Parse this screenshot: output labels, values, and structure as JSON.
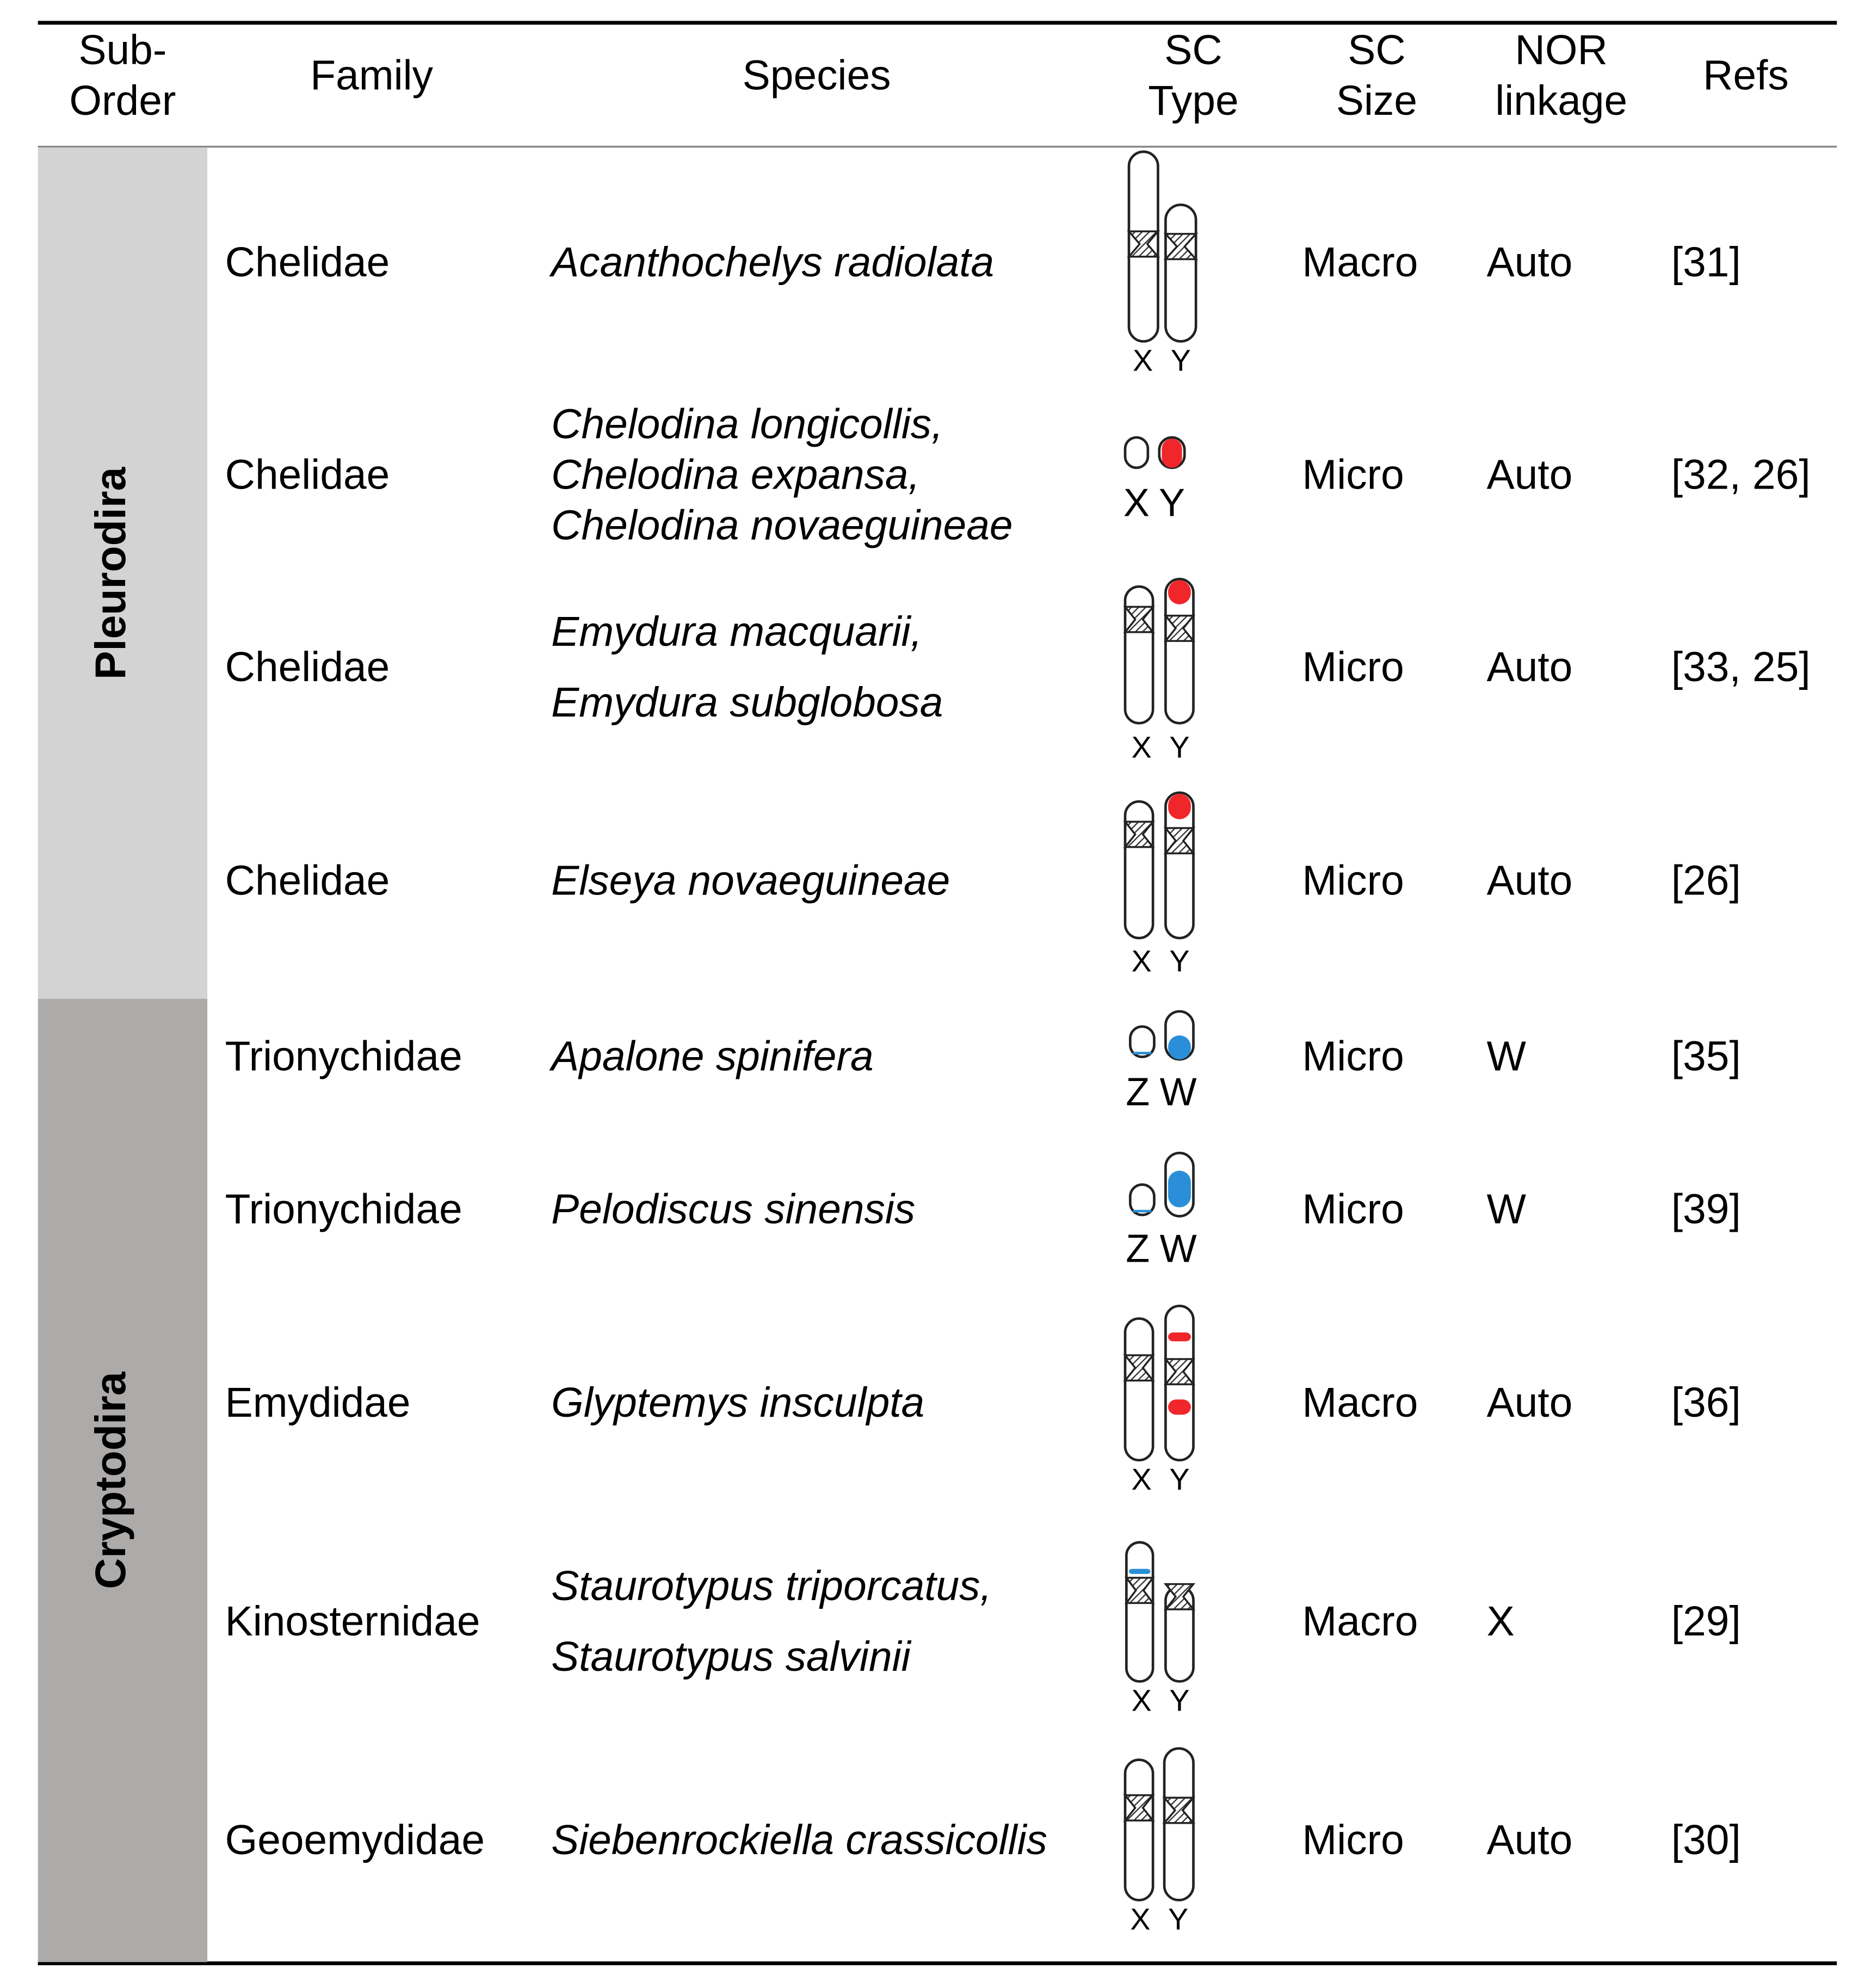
{
  "header": {
    "columns": [
      [
        "Sub-",
        "Order"
      ],
      [
        "Family"
      ],
      [
        "Species"
      ],
      [
        "SC",
        "Type"
      ],
      [
        "SC",
        "Size"
      ],
      [
        "NOR",
        "linkage"
      ],
      [
        "Refs"
      ]
    ]
  },
  "suborders": [
    {
      "label": "Pleurodira",
      "rows": [
        {
          "family": "Chelidae",
          "species": [
            "Acanthochelys radiolata"
          ],
          "sc_type": [
            "X",
            "Y"
          ],
          "size": "Macro",
          "nor": "Auto",
          "refs": "[31]"
        },
        {
          "family": "Chelidae",
          "species": [
            "Chelodina longicollis,",
            "Chelodina expansa,",
            "Chelodina novaeguineae"
          ],
          "sc_type": [
            "X",
            "Y"
          ],
          "size": "Micro",
          "nor": "Auto",
          "refs": "[32, 26]"
        },
        {
          "family": "Chelidae",
          "species": [
            "Emydura macquarii,",
            "Emydura subglobosa"
          ],
          "sc_type": [
            "X",
            "Y"
          ],
          "size": "Micro",
          "nor": "Auto",
          "refs": "[33, 25]"
        },
        {
          "family": "Chelidae",
          "species": [
            "Elseya novaeguineae"
          ],
          "sc_type": [
            "X",
            "Y"
          ],
          "size": "Micro",
          "nor": "Auto",
          "refs": "[26]"
        }
      ]
    },
    {
      "label": "Cryptodira",
      "rows": [
        {
          "family": "Trionychidae",
          "species": [
            "Apalone spinifera"
          ],
          "sc_type": [
            "Z",
            "W"
          ],
          "size": "Micro",
          "nor": "W",
          "refs": "[35]"
        },
        {
          "family": "Trionychidae",
          "species": [
            "Pelodiscus sinensis"
          ],
          "sc_type": [
            "Z",
            "W"
          ],
          "size": "Micro",
          "nor": "W",
          "refs": "[39]"
        },
        {
          "family": "Emydidae",
          "species": [
            "Glyptemys insculpta"
          ],
          "sc_type": [
            "X",
            "Y"
          ],
          "size": "Macro",
          "nor": "Auto",
          "refs": "[36]"
        },
        {
          "family": "Kinosternidae",
          "species": [
            "Staurotypus triporcatus,",
            "Staurotypus salvinii"
          ],
          "sc_type": [
            "X",
            "Y"
          ],
          "size": "Macro",
          "nor": "X",
          "refs": "[29]"
        },
        {
          "family": "Geoemydidae",
          "species": [
            "Siebenrockiella crassicollis"
          ],
          "sc_type": [
            "X",
            "Y"
          ],
          "size": "Micro",
          "nor": "Auto",
          "refs": "[30]"
        }
      ]
    }
  ]
}
